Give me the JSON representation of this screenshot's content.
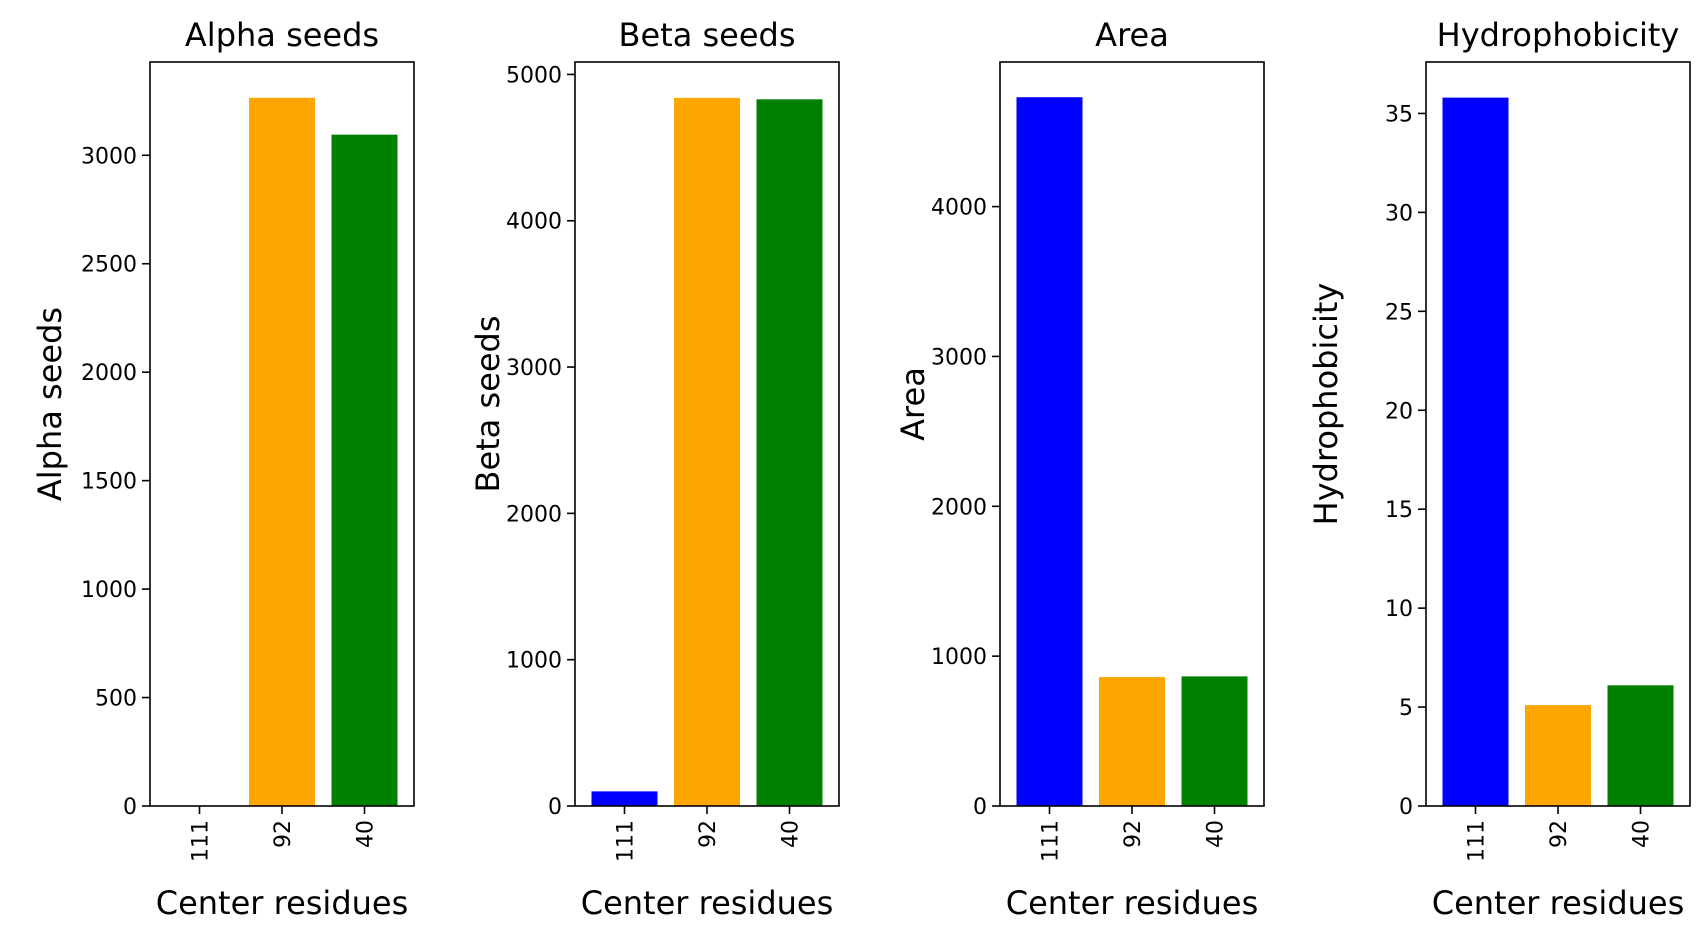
{
  "chart_data": [
    {
      "type": "bar",
      "title": "Alpha seeds",
      "xlabel": "Center residues",
      "ylabel": "Alpha seeds",
      "categories": [
        "111",
        "92",
        "40"
      ],
      "values": [
        0,
        3265,
        3095
      ],
      "colors": [
        "#0000ff",
        "#ffa500",
        "#008000"
      ],
      "ylim": [
        0,
        3430
      ],
      "yticks": [
        0,
        500,
        1000,
        1500,
        2000,
        2500,
        3000
      ]
    },
    {
      "type": "bar",
      "title": "Beta seeds",
      "xlabel": "Center residues",
      "ylabel": "Beta seeds",
      "categories": [
        "111",
        "92",
        "40"
      ],
      "values": [
        100,
        4840,
        4830
      ],
      "colors": [
        "#0000ff",
        "#ffa500",
        "#008000"
      ],
      "ylim": [
        0,
        5085
      ],
      "yticks": [
        0,
        1000,
        2000,
        3000,
        4000,
        5000
      ]
    },
    {
      "type": "bar",
      "title": "Area",
      "xlabel": "Center residues",
      "ylabel": "Area",
      "categories": [
        "111",
        "92",
        "40"
      ],
      "values": [
        4730,
        860,
        865
      ],
      "colors": [
        "#0000ff",
        "#ffa500",
        "#008000"
      ],
      "ylim": [
        0,
        4965
      ],
      "yticks": [
        0,
        1000,
        2000,
        3000,
        4000
      ]
    },
    {
      "type": "bar",
      "title": "Hydrophobicity",
      "xlabel": "Center residues",
      "ylabel": "Hydrophobicity",
      "categories": [
        "111",
        "92",
        "40"
      ],
      "values": [
        35.8,
        5.1,
        6.1
      ],
      "colors": [
        "#0000ff",
        "#ffa500",
        "#008000"
      ],
      "ylim": [
        0,
        37.6
      ],
      "yticks": [
        0,
        5,
        10,
        15,
        20,
        25,
        30,
        35
      ]
    }
  ]
}
